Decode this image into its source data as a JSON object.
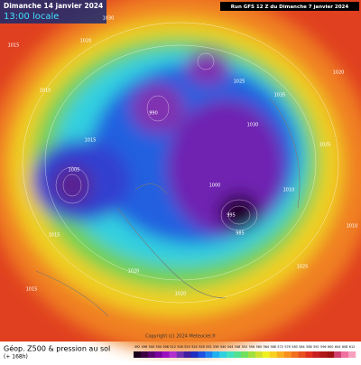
{
  "header": {
    "valid_date": "Dimanche 14 janvier 2024",
    "local_time": "13:00 locale",
    "run": "Run GFS 12 Z du Dimanche 7 janvier 2024"
  },
  "footer": {
    "field": "Géop. Z500 & pression au sol",
    "lead": "(+ 168h)",
    "copyright": "Copyright (c) 2024 Meteociel.fr"
  },
  "colorbar": {
    "labels": [
      492,
      496,
      500,
      504,
      508,
      512,
      516,
      520,
      524,
      528,
      532,
      536,
      540,
      544,
      548,
      552,
      556,
      560,
      564,
      568,
      572,
      576,
      580,
      584,
      588,
      592,
      596,
      600,
      604,
      608,
      612
    ],
    "colors": [
      "#1a001a",
      "#3a0040",
      "#5a0070",
      "#7a00a0",
      "#9a10c0",
      "#b030d0",
      "#7030b0",
      "#4020a0",
      "#2030c0",
      "#2050e0",
      "#2080f0",
      "#20b0f0",
      "#30d0e0",
      "#40e0c0",
      "#50e090",
      "#70e060",
      "#a0e040",
      "#d0e030",
      "#f0f020",
      "#f8d020",
      "#f8b020",
      "#f89020",
      "#f07020",
      "#e85020",
      "#e03020",
      "#c82020",
      "#b01818",
      "#a01010",
      "#d04070",
      "#f070a0",
      "#f8a0c0"
    ]
  },
  "pressure_labels": [
    "1015",
    "1020",
    "1010",
    "1025",
    "1005",
    "995",
    "1000",
    "1030",
    "1035",
    "1020",
    "1015",
    "990",
    "985",
    "1010",
    "1025",
    "1030",
    "1020",
    "1015",
    "1010",
    "1020",
    "1025",
    "1015"
  ]
}
